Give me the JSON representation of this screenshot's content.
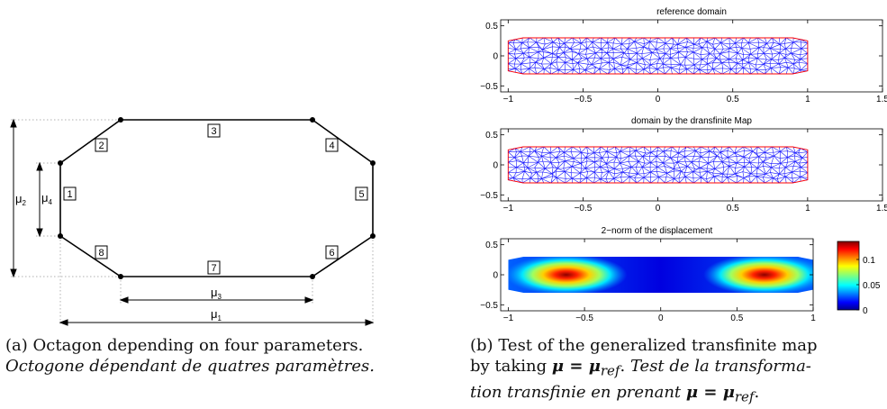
{
  "figure_a": {
    "side_labels": [
      "1",
      "2",
      "3",
      "4",
      "5",
      "6",
      "7",
      "8"
    ],
    "dims": [
      {
        "symbol": "μ",
        "sub": "1"
      },
      {
        "symbol": "μ",
        "sub": "2"
      },
      {
        "symbol": "μ",
        "sub": "3"
      },
      {
        "symbol": "μ",
        "sub": "4"
      }
    ],
    "caption": {
      "prefix": "(a)",
      "text": "Octagon depending on four parameters.",
      "translation": "Octogone dépendant de quatres paramètres."
    }
  },
  "figure_b": {
    "panels": [
      {
        "title": "reference domain",
        "x_ticks": [
          "−1",
          "−0.5",
          "0",
          "0.5",
          "1",
          "1.5"
        ],
        "y_ticks": [
          "0.5",
          "0",
          "−0.5"
        ],
        "xlim": [
          -1.05,
          1.5
        ],
        "ylim": [
          -0.6,
          0.6
        ]
      },
      {
        "title": "domain by the dransfinite Map",
        "x_ticks": [
          "−1",
          "−0.5",
          "0",
          "0.5",
          "1",
          "1.5"
        ],
        "y_ticks": [
          "0.5",
          "0",
          "−0.5"
        ],
        "xlim": [
          -1.05,
          1.5
        ],
        "ylim": [
          -0.6,
          0.6
        ]
      },
      {
        "title": "2−norm of the displacement",
        "x_ticks": [
          "−1",
          "−0.5",
          "0",
          "0.5",
          "1"
        ],
        "y_ticks": [
          "0.5",
          "0",
          "−0.5"
        ],
        "xlim": [
          -1.05,
          1.0
        ],
        "ylim": [
          -0.6,
          0.6
        ],
        "colorbar_ticks": [
          "0.1",
          "0.05",
          "0"
        ]
      }
    ],
    "colors": {
      "mesh": "#1a1aff",
      "boundary": "#ff0000"
    },
    "caption": {
      "prefix": "(b)",
      "line1": "Test of the generalized transfinite map",
      "line2_text": "by taking",
      "line2_eq": "μ = μ",
      "line2_sub": "ref",
      "line2_translation": "Test de la transforma-",
      "line3": "tion transfinie en prenant",
      "line3_eq": "μ = μ",
      "line3_sub": "ref"
    }
  }
}
